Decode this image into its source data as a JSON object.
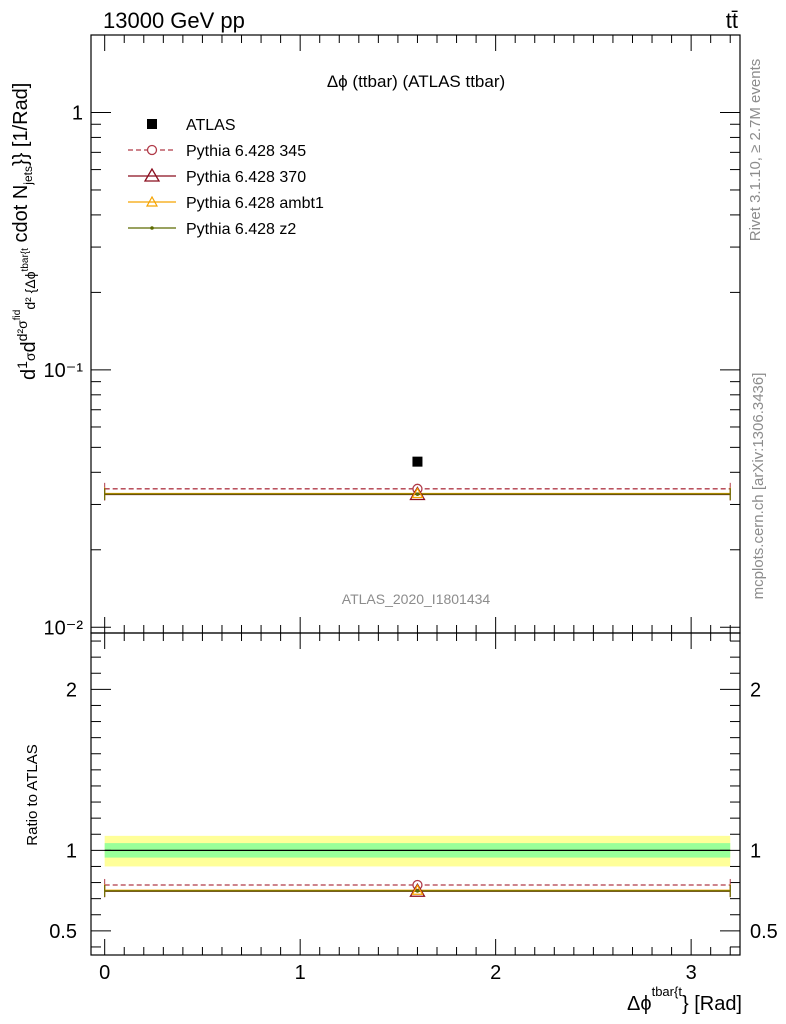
{
  "header": {
    "left": "13000 GeV pp",
    "right": "tt̄"
  },
  "side_labels": {
    "rivet": "Rivet 3.1.10, ≥ 2.7M events",
    "mcplots": "mcplots.cern.ch [arXiv:1306.3436]"
  },
  "chart_data": [
    {
      "type": "scatter",
      "title": "Δϕ (ttbar) (ATLAS ttbar)",
      "watermark": "ATLAS_2020_I1801434",
      "ylabel": "d1/σ d d²σ^fid / d² {Δϕ^tbar{t}} cdot N_jets}} [1/Rad]",
      "yscale": "log",
      "ylim": [
        0.0095,
        2.0
      ],
      "xlim": [
        -0.07,
        3.25
      ],
      "yticks": [
        {
          "value": 1,
          "label": "1"
        },
        {
          "value": 0.1,
          "label": "10⁻¹"
        },
        {
          "value": 0.01,
          "label": "10⁻²"
        }
      ],
      "legend_placement": "top-left",
      "series": [
        {
          "name": "ATLAS",
          "color": "#000000",
          "style": "square",
          "x": [
            1.6
          ],
          "y": [
            0.044
          ]
        },
        {
          "name": "Pythia 6.428 345",
          "color": "#b03a48",
          "style": "dashed-circle",
          "x_range": [
            0,
            3.2
          ],
          "x": [
            1.6
          ],
          "y": [
            0.0345
          ]
        },
        {
          "name": "Pythia 6.428 370",
          "color": "#8b0e1e",
          "style": "solid-triangle",
          "x_range": [
            0,
            3.2
          ],
          "x": [
            1.6
          ],
          "y": [
            0.0328
          ]
        },
        {
          "name": "Pythia 6.428 ambt1",
          "color": "#f5a300",
          "style": "solid-triangle-small",
          "x_range": [
            0,
            3.2
          ],
          "x": [
            1.6
          ],
          "y": [
            0.0331
          ]
        },
        {
          "name": "Pythia 6.428 z2",
          "color": "#5c6b00",
          "style": "solid-dot",
          "x_range": [
            0,
            3.2
          ],
          "x": [
            1.6
          ],
          "y": [
            0.0329
          ]
        }
      ]
    },
    {
      "type": "scatter",
      "ylabel": "Ratio to ATLAS",
      "xlabel": "Δϕ^tbar{t}} [Rad]",
      "ylim": [
        0.35,
        2.35
      ],
      "xlim": [
        -0.07,
        3.25
      ],
      "xticks": [
        {
          "value": 0,
          "label": "0"
        },
        {
          "value": 1,
          "label": "1"
        },
        {
          "value": 2,
          "label": "2"
        },
        {
          "value": 3,
          "label": "3"
        }
      ],
      "yticks": [
        {
          "value": 0.5,
          "label": "0.5"
        },
        {
          "value": 1,
          "label": "1"
        },
        {
          "value": 2,
          "label": "2"
        }
      ],
      "bands": [
        {
          "name": "total uncertainty",
          "color": "#ffff99",
          "low": 0.9,
          "high": 1.09
        },
        {
          "name": "stat uncertainty",
          "color": "#99ff99",
          "low": 0.955,
          "high": 1.045
        }
      ],
      "series": [
        {
          "name": "ATLAS",
          "color": "#000000",
          "style": "line",
          "x_range": [
            0,
            3.2
          ],
          "y": [
            1.0
          ]
        },
        {
          "name": "Pythia 6.428 345",
          "color": "#b03a48",
          "style": "dashed-circle",
          "x_range": [
            0,
            3.2
          ],
          "x": [
            1.6
          ],
          "y": [
            0.785
          ]
        },
        {
          "name": "Pythia 6.428 370",
          "color": "#8b0e1e",
          "style": "solid-triangle",
          "x_range": [
            0,
            3.2
          ],
          "x": [
            1.6
          ],
          "y": [
            0.746
          ]
        },
        {
          "name": "Pythia 6.428 ambt1",
          "color": "#f5a300",
          "style": "solid-triangle-small",
          "x_range": [
            0,
            3.2
          ],
          "x": [
            1.6
          ],
          "y": [
            0.752
          ]
        },
        {
          "name": "Pythia 6.428 z2",
          "color": "#5c6b00",
          "style": "solid-dot",
          "x_range": [
            0,
            3.2
          ],
          "x": [
            1.6
          ],
          "y": [
            0.748
          ]
        }
      ]
    }
  ]
}
